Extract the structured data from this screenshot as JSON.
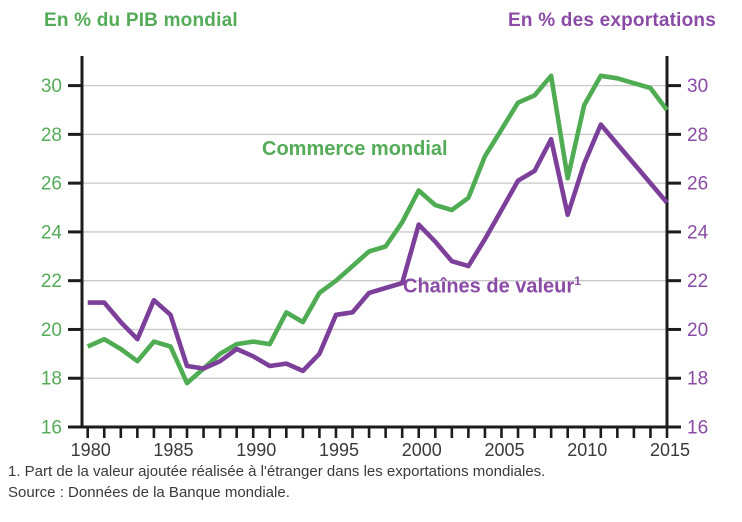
{
  "titles": {
    "left": "En % du PIB mondial",
    "right": "En % des exportations"
  },
  "series_labels": {
    "green": "Commerce mondial",
    "purple_base": "Chaînes de valeur",
    "purple_sup": "1"
  },
  "footnotes": {
    "note1": "1. Part de la valeur ajoutée réalisée à l'étranger dans les exportations mondiales.",
    "source": "Source : Données de la Banque mondiale."
  },
  "colors": {
    "green_line": "#4fac53",
    "green_label": "#54ab58",
    "purple_line": "#7c3f9a",
    "purple_label": "#8a4ba6",
    "axis": "#1c1c1c",
    "grid": "#c9c9c9",
    "year_label": "#3a3a3a",
    "footnote": "#3a3a3a"
  },
  "chart_data": {
    "type": "line",
    "title": "",
    "x": [
      1980,
      1981,
      1982,
      1983,
      1984,
      1985,
      1986,
      1987,
      1988,
      1989,
      1990,
      1991,
      1992,
      1993,
      1994,
      1995,
      1996,
      1997,
      1998,
      1999,
      2000,
      2001,
      2002,
      2003,
      2004,
      2005,
      2006,
      2007,
      2008,
      2009,
      2010,
      2011,
      2012,
      2013,
      2014,
      2015
    ],
    "series": [
      {
        "name": "Commerce mondial",
        "axis": "left",
        "unit": "En % du PIB mondial",
        "color_key": "green_line",
        "values": [
          19.3,
          19.6,
          19.2,
          18.7,
          19.5,
          19.3,
          17.8,
          18.4,
          19.0,
          19.4,
          19.5,
          19.4,
          20.7,
          20.3,
          21.5,
          22.0,
          22.6,
          23.2,
          23.4,
          24.4,
          25.7,
          25.1,
          24.9,
          25.4,
          27.1,
          28.2,
          29.3,
          29.6,
          30.4,
          26.2,
          29.2,
          30.4,
          30.3,
          30.1,
          29.9,
          29.0
        ]
      },
      {
        "name": "Chaînes de valeur",
        "axis": "right",
        "unit": "En % des exportations",
        "color_key": "purple_line",
        "values": [
          21.1,
          21.1,
          20.3,
          19.6,
          21.2,
          20.6,
          18.5,
          18.4,
          18.7,
          19.2,
          18.9,
          18.5,
          18.6,
          18.3,
          19.0,
          20.6,
          20.7,
          21.5,
          21.7,
          21.9,
          24.3,
          23.6,
          22.8,
          22.6,
          23.7,
          24.9,
          26.1,
          26.5,
          27.8,
          24.7,
          26.8,
          28.4,
          27.6,
          26.8,
          26.0,
          25.2
        ]
      }
    ],
    "ylim": [
      16,
      30
    ],
    "y_ticks": [
      16,
      18,
      20,
      22,
      24,
      26,
      28,
      30
    ],
    "x_ticks_labeled": [
      1980,
      1985,
      1990,
      1995,
      2000,
      2005,
      2010,
      2015
    ],
    "x_minor_tick_every": 1,
    "grid": true,
    "legend_position": "inline-labels"
  }
}
